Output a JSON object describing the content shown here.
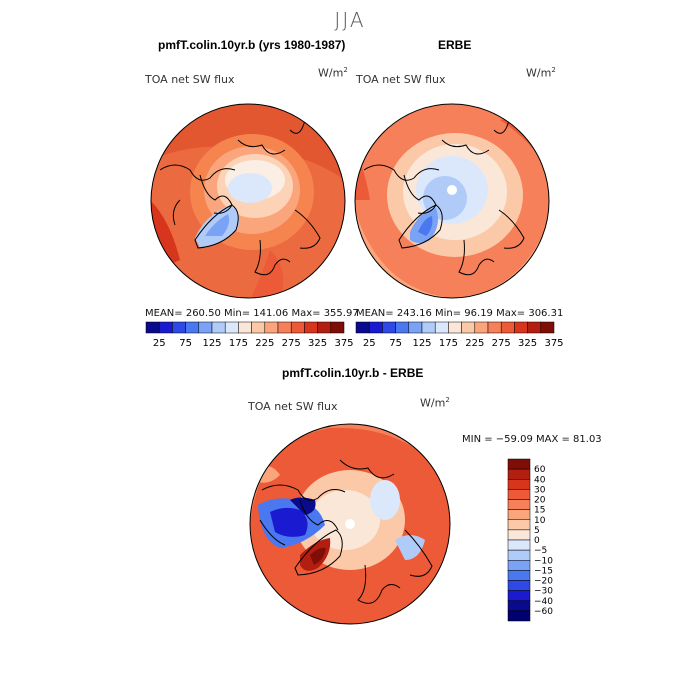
{
  "title": "JJA",
  "panels": [
    {
      "title": "pmfT.colin.10yr.b (yrs 1980-1987)",
      "variable": "TOA net SW flux",
      "units_base": "W/m",
      "units_exp": "2",
      "stats_text": "MEAN= 260.50   Min= 141.06   Max= 355.97"
    },
    {
      "title": "ERBE",
      "variable": "TOA net SW flux",
      "units_base": "W/m",
      "units_exp": "2",
      "stats_text": "MEAN= 243.16   Min=  96.19   Max= 306.31"
    }
  ],
  "abs_colorbar": {
    "colors": [
      "#0a0a8c",
      "#1a1ad0",
      "#2e49e8",
      "#4a78f0",
      "#7aa2f5",
      "#b0cbf8",
      "#dbe8fb",
      "#fbe7d8",
      "#fcc9a8",
      "#fba57c",
      "#f5805a",
      "#ec5a37",
      "#d8361c",
      "#b21f10",
      "#7f0e06"
    ],
    "labels": [
      "25",
      "75",
      "125",
      "175",
      "225",
      "275",
      "325",
      "375"
    ]
  },
  "diff_panel": {
    "title": "pmfT.colin.10yr.b - ERBE",
    "variable": "TOA net SW flux",
    "units_base": "W/m",
    "units_exp": "2",
    "stats_text": "MIN = −59.09  MAX =  81.03"
  },
  "diff_colorbar": {
    "labels": [
      "60",
      "40",
      "30",
      "20",
      "15",
      "10",
      "5",
      "0",
      "−5",
      "−10",
      "−15",
      "−20",
      "−30",
      "−40",
      "−60"
    ],
    "colors": [
      "#7f0e06",
      "#b21f10",
      "#d8361c",
      "#ec5a37",
      "#f5805a",
      "#fba57c",
      "#fcc9a8",
      "#fbe7d8",
      "#dbe8fb",
      "#b0cbf8",
      "#7aa2f5",
      "#4a78f0",
      "#2e49e8",
      "#1a1ad0",
      "#0a0a8c",
      "#000070"
    ]
  }
}
